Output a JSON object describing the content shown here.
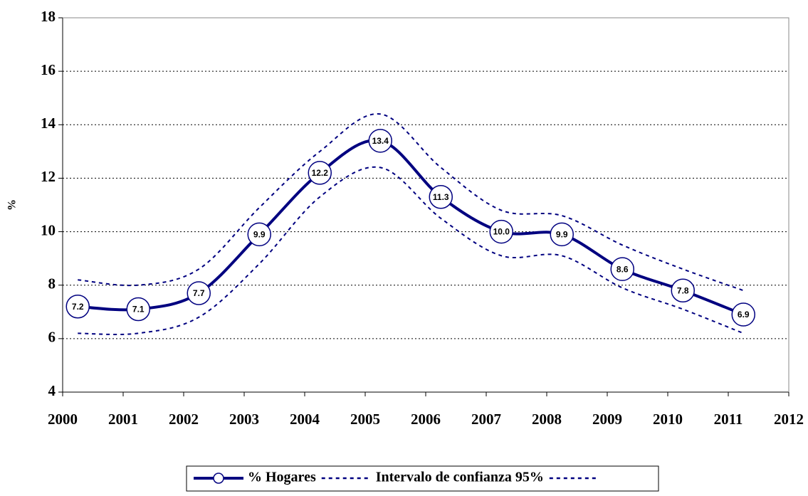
{
  "chart_data": {
    "type": "line",
    "x": [
      2000.25,
      2001.25,
      2002.25,
      2003.25,
      2004.25,
      2005.25,
      2006.25,
      2007.25,
      2008.25,
      2009.25,
      2010.25,
      2011.25
    ],
    "series": [
      {
        "name": "% Hogares",
        "color": "#000080",
        "style": "solid",
        "markers": true,
        "values": [
          7.2,
          7.1,
          7.7,
          9.9,
          12.2,
          13.4,
          11.3,
          10.0,
          9.9,
          8.6,
          7.8,
          6.9
        ],
        "value_labels": [
          "7.2",
          "7.1",
          "7.7",
          "9.9",
          "12.2",
          "13.4",
          "11.3",
          "10.0",
          "9.9",
          "8.6",
          "7.8",
          "6.9"
        ]
      },
      {
        "name": "Intervalo de confianza 95%",
        "color": "#000080",
        "style": "dashed",
        "values": [
          8.2,
          8.0,
          8.6,
          10.9,
          13.0,
          14.4,
          12.4,
          10.8,
          10.6,
          9.5,
          8.6,
          7.8
        ]
      },
      {
        "color": "#000080",
        "style": "dashed",
        "values": [
          6.2,
          6.2,
          6.8,
          8.8,
          11.3,
          12.4,
          10.5,
          9.1,
          9.1,
          7.9,
          7.1,
          6.2
        ]
      }
    ],
    "ylabel": "%",
    "xlim": [
      2000,
      2012
    ],
    "xticks": [
      2000,
      2001,
      2002,
      2003,
      2004,
      2005,
      2006,
      2007,
      2008,
      2009,
      2010,
      2011,
      2012
    ],
    "ylim": [
      4,
      18
    ],
    "yticks": [
      4,
      6,
      8,
      10,
      12,
      14,
      16,
      18
    ],
    "grid": true,
    "legend": "bottom"
  }
}
